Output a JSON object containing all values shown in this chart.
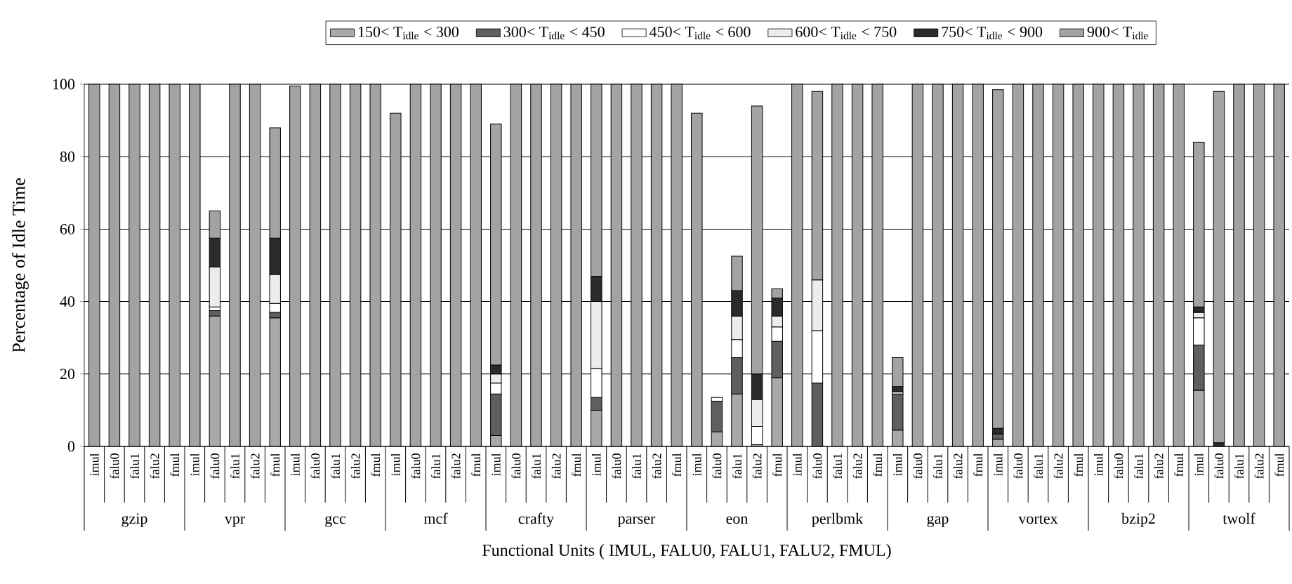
{
  "chart_data": {
    "type": "bar",
    "stacked": true,
    "xlabel": "Functional Units ( IMUL, FALU0, FALU1, FALU2, FMUL)",
    "ylabel": "Percentage of Idle Time",
    "categories": [
      "imul",
      "falu0",
      "falu1",
      "falu2",
      "fmul",
      "imul",
      "falu0",
      "falu1",
      "falu2",
      "fmul",
      "imul",
      "falu0",
      "falu1",
      "falu2",
      "fmul",
      "imul",
      "falu0",
      "falu1",
      "falu2",
      "fmul",
      "imul",
      "falu0",
      "falu1",
      "falu2",
      "fmul",
      "imul",
      "falu0",
      "falu1",
      "falu2",
      "fmul",
      "imul",
      "falu0",
      "falu1",
      "falu2",
      "fmul",
      "imul",
      "falu0",
      "falu1",
      "falu2",
      "fmul",
      "imul",
      "falu0",
      "falu1",
      "falu2",
      "fmul",
      "imul",
      "falu0",
      "falu1",
      "falu2",
      "fmul",
      "imul",
      "falu0",
      "falu1",
      "falu2",
      "fmul",
      "imul",
      "falu0",
      "falu1",
      "falu2",
      "fmul"
    ],
    "annotations": [
      "gzip",
      "vpr",
      "gcc",
      "mcf",
      "crafty",
      "parser",
      "eon",
      "perlbmk",
      "gap",
      "vortex",
      "bzip2",
      "twolf"
    ],
    "ylim": [
      0,
      100
    ],
    "yticks": [
      0,
      20,
      40,
      60,
      80,
      100
    ],
    "grid": "y",
    "legend": "top",
    "series": [
      {
        "name": "150< T$_{idle}$ < 300",
        "color": "#a9a9a9",
        "values": [
          null,
          null,
          null,
          null,
          null,
          null,
          36,
          null,
          null,
          35.5,
          null,
          null,
          null,
          null,
          null,
          null,
          null,
          null,
          null,
          null,
          3,
          null,
          null,
          null,
          null,
          10,
          null,
          null,
          null,
          null,
          null,
          4,
          14.5,
          0.5,
          19,
          null,
          null,
          null,
          null,
          null,
          4.5,
          null,
          null,
          null,
          null,
          2,
          null,
          null,
          null,
          null,
          null,
          null,
          null,
          null,
          null,
          15.5,
          null,
          null,
          null,
          null
        ]
      },
      {
        "name": "300< T$_{idle}$ < 450",
        "color": "#5f5f5f",
        "values": [
          null,
          null,
          null,
          null,
          null,
          null,
          1.5,
          null,
          null,
          1.5,
          null,
          null,
          null,
          null,
          null,
          null,
          null,
          null,
          null,
          null,
          11.5,
          null,
          null,
          null,
          null,
          3.5,
          null,
          null,
          null,
          null,
          null,
          8.5,
          10,
          null,
          10,
          null,
          17.5,
          null,
          null,
          null,
          10,
          null,
          null,
          null,
          null,
          1.5,
          null,
          null,
          null,
          null,
          null,
          null,
          null,
          null,
          null,
          12.5,
          null,
          null,
          null,
          null
        ]
      },
      {
        "name": "450< T$_{idle}$ < 600",
        "color": "#ffffff",
        "values": [
          null,
          null,
          null,
          null,
          null,
          null,
          1,
          null,
          null,
          2.5,
          null,
          null,
          null,
          null,
          null,
          null,
          null,
          null,
          null,
          null,
          3,
          null,
          null,
          null,
          null,
          8,
          null,
          null,
          null,
          null,
          null,
          1,
          5,
          5,
          4,
          null,
          14.5,
          null,
          null,
          null,
          0.5,
          null,
          null,
          null,
          null,
          null,
          null,
          null,
          null,
          null,
          null,
          null,
          null,
          null,
          null,
          7.5,
          null,
          null,
          null,
          null
        ]
      },
      {
        "name": "600< T$_{idle}$ < 750",
        "color": "#ececec",
        "values": [
          null,
          null,
          null,
          null,
          null,
          null,
          11,
          null,
          null,
          8,
          null,
          null,
          null,
          null,
          null,
          null,
          null,
          null,
          null,
          null,
          2.5,
          null,
          null,
          null,
          null,
          18.5,
          null,
          null,
          null,
          null,
          null,
          null,
          6.5,
          7.5,
          3,
          null,
          14,
          null,
          null,
          null,
          null,
          null,
          null,
          null,
          null,
          null,
          null,
          null,
          null,
          null,
          null,
          null,
          null,
          null,
          null,
          1.5,
          null,
          null,
          null,
          null
        ]
      },
      {
        "name": "750< T$_{idle}$ < 900",
        "color": "#2b2b2b",
        "values": [
          null,
          null,
          null,
          null,
          null,
          null,
          8,
          null,
          null,
          10,
          null,
          null,
          null,
          null,
          null,
          null,
          null,
          null,
          null,
          null,
          2.5,
          null,
          null,
          null,
          null,
          7,
          null,
          null,
          null,
          null,
          null,
          null,
          7,
          7,
          5,
          null,
          null,
          null,
          null,
          null,
          1.5,
          null,
          null,
          null,
          null,
          1.5,
          null,
          null,
          null,
          null,
          null,
          null,
          null,
          null,
          null,
          1.5,
          1,
          null,
          null,
          null
        ]
      },
      {
        "name": "900< T$_{idle}$",
        "color": "#a3a3a3",
        "values": [
          100,
          100,
          100,
          100,
          100,
          100,
          7.5,
          100,
          100,
          30.5,
          99.5,
          100,
          100,
          100,
          100,
          92,
          100,
          100,
          100,
          100,
          66.5,
          100,
          100,
          100,
          100,
          53,
          100,
          100,
          100,
          100,
          92,
          null,
          9.5,
          74,
          2.5,
          100,
          52,
          100,
          100,
          100,
          8,
          100,
          100,
          100,
          100,
          93.5,
          100,
          100,
          100,
          100,
          100,
          100,
          100,
          100,
          100,
          45.5,
          97,
          100,
          100,
          100
        ]
      }
    ]
  }
}
